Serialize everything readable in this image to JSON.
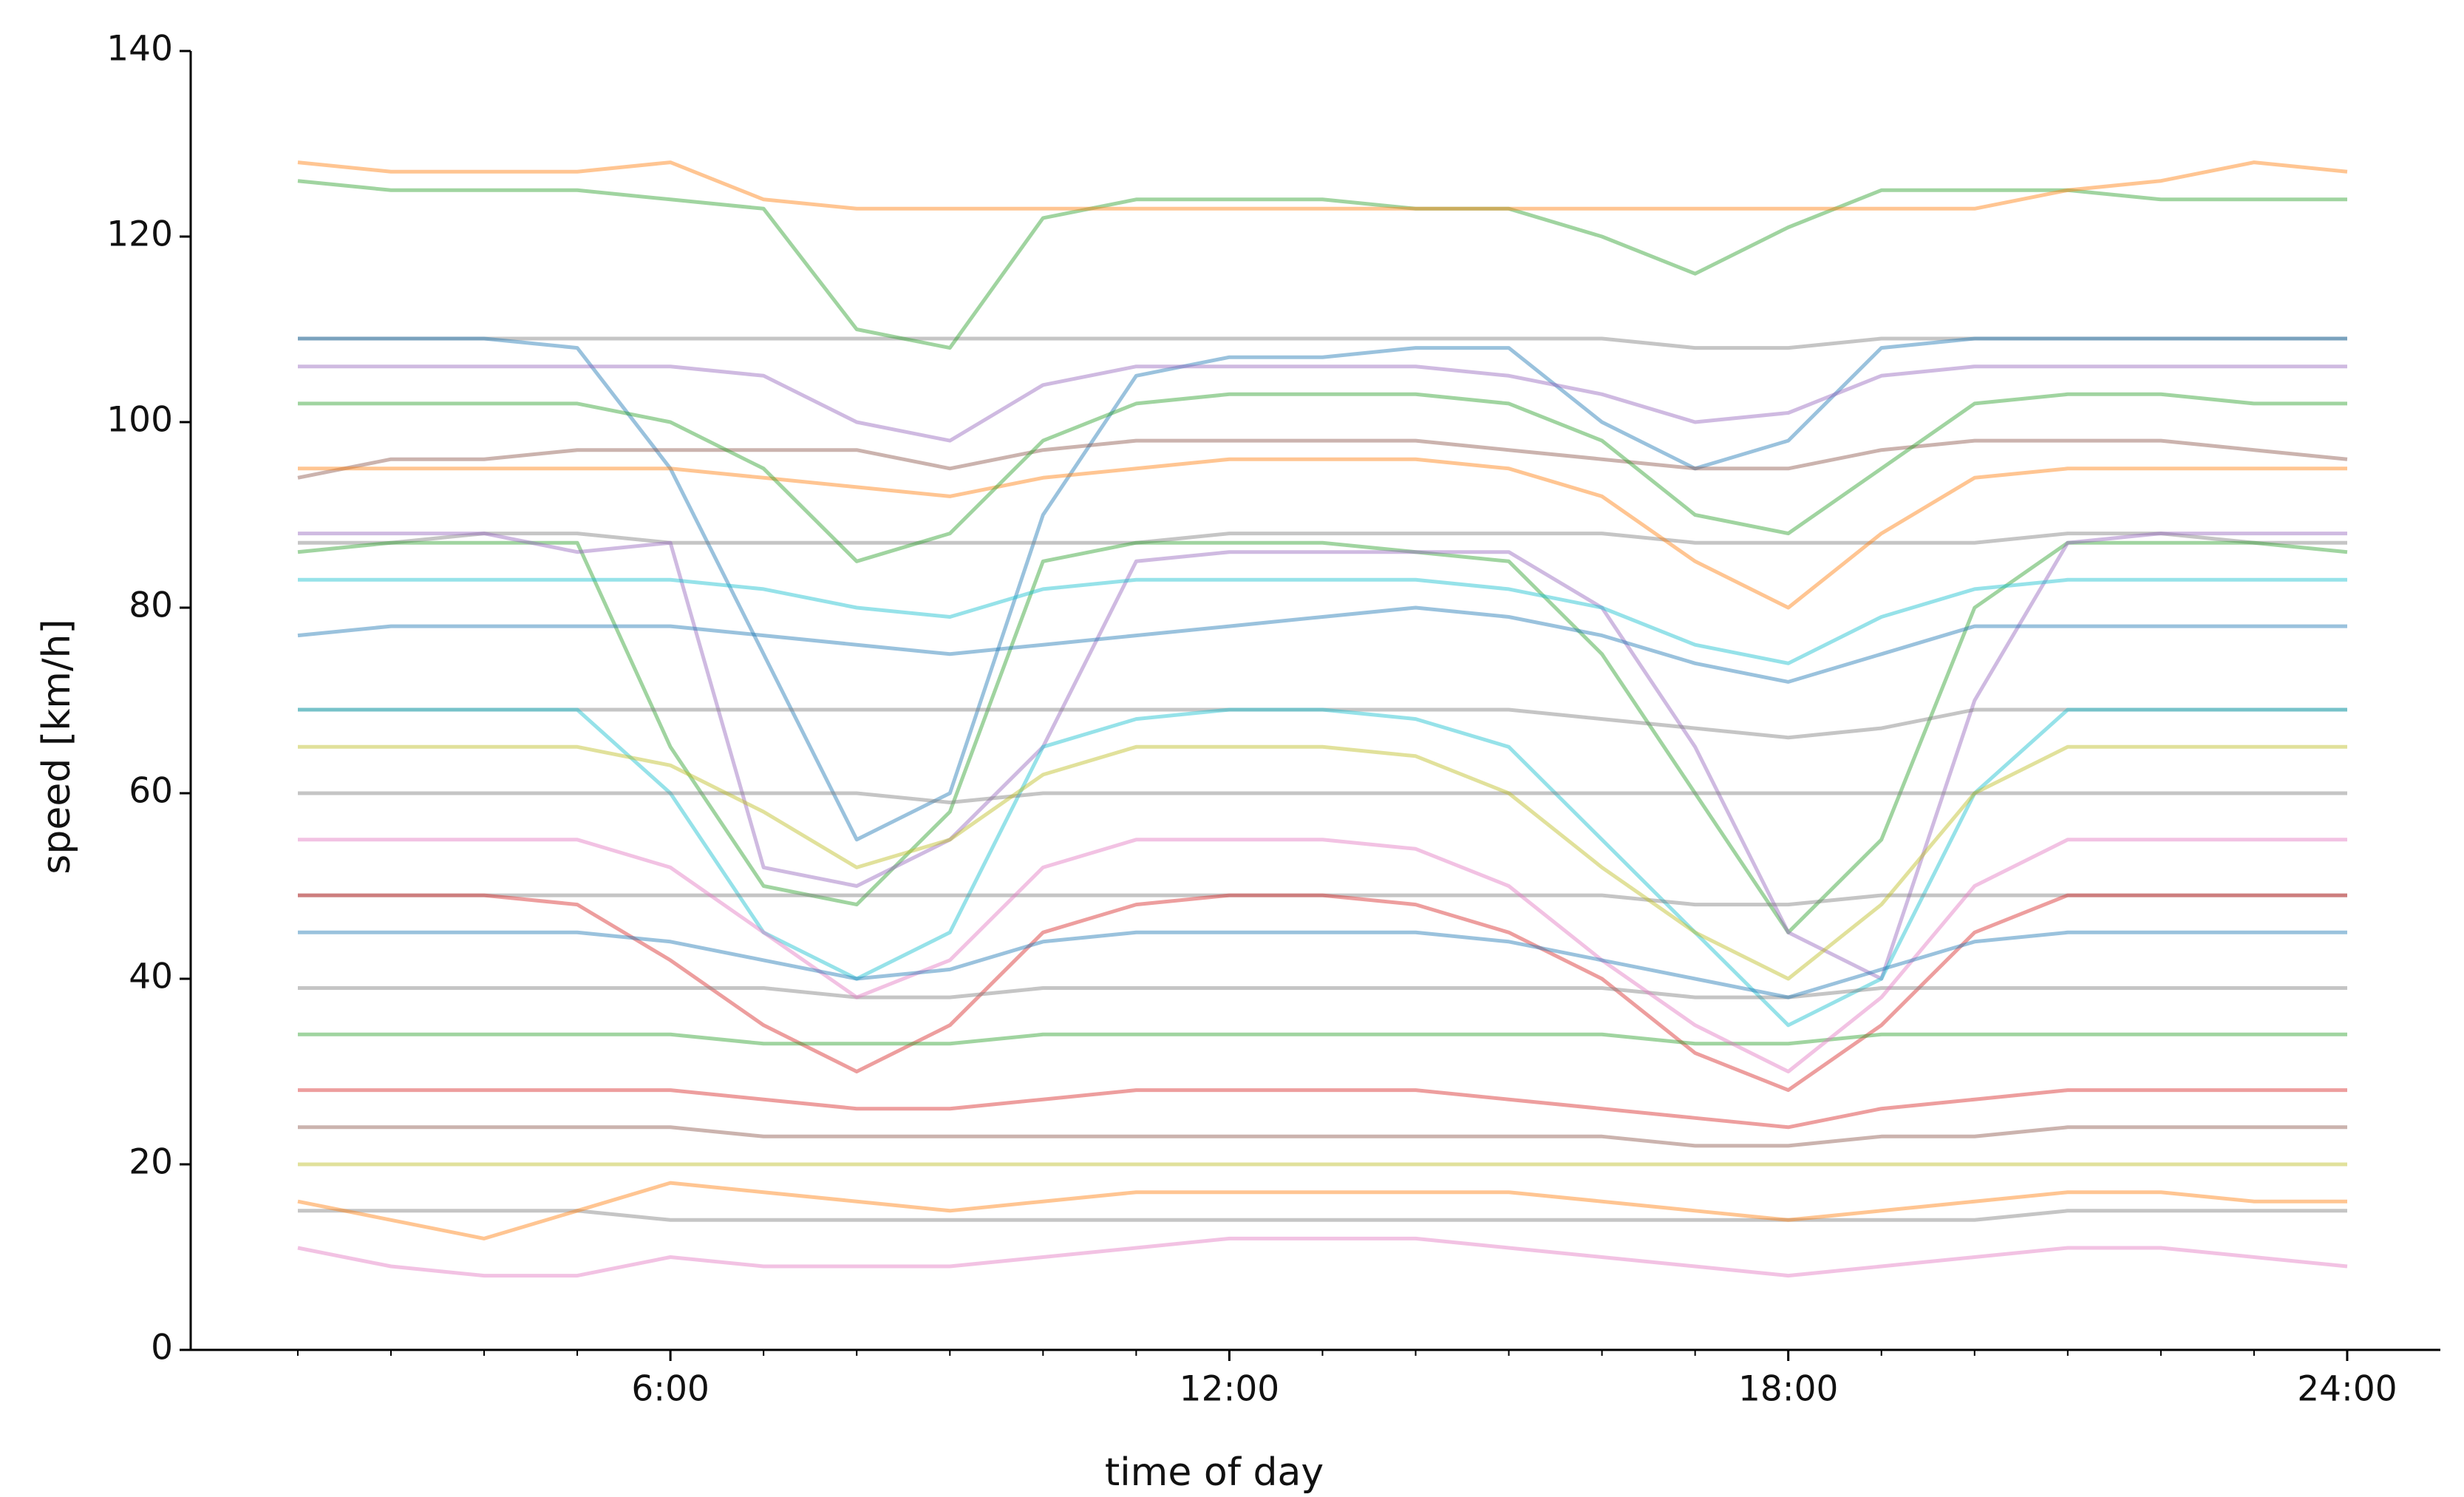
{
  "chart_data": {
    "type": "line",
    "xlabel": "time of day",
    "ylabel": "speed [km/h]",
    "x": [
      2,
      3,
      4,
      5,
      6,
      7,
      8,
      9,
      10,
      11,
      12,
      13,
      14,
      15,
      16,
      17,
      18,
      19,
      20,
      21,
      22,
      23,
      24
    ],
    "xlim": [
      0.85,
      25
    ],
    "ylim": [
      0,
      140
    ],
    "xticks": [
      {
        "value": 6,
        "label": "6:00"
      },
      {
        "value": 12,
        "label": "12:00"
      },
      {
        "value": 18,
        "label": "18:00"
      },
      {
        "value": 24,
        "label": "24:00"
      }
    ],
    "xminorticks": [
      2,
      3,
      4,
      5,
      7,
      8,
      9,
      10,
      11,
      13,
      14,
      15,
      16,
      17,
      19,
      20,
      21,
      22,
      23
    ],
    "yticks": [
      0,
      20,
      40,
      60,
      80,
      100,
      120,
      140
    ],
    "series": [
      {
        "color": "#7f7f7f",
        "values": [
          109,
          109,
          109,
          109,
          109,
          109,
          109,
          109,
          109,
          109,
          109,
          109,
          109,
          109,
          109,
          108,
          108,
          109,
          109,
          109,
          109,
          109,
          109
        ]
      },
      {
        "color": "#2ca02c",
        "values": [
          126,
          125,
          125,
          125,
          124,
          123,
          110,
          108,
          122,
          124,
          124,
          124,
          123,
          123,
          120,
          116,
          121,
          125,
          125,
          125,
          124,
          124,
          124
        ]
      },
      {
        "color": "#ff7f0e",
        "values": [
          128,
          127,
          127,
          127,
          128,
          124,
          123,
          123,
          123,
          123,
          123,
          123,
          123,
          123,
          123,
          123,
          123,
          123,
          123,
          125,
          126,
          128,
          127
        ]
      },
      {
        "color": "#1f77b4",
        "values": [
          109,
          109,
          109,
          108,
          95,
          75,
          55,
          60,
          90,
          105,
          107,
          107,
          108,
          108,
          100,
          95,
          98,
          108,
          109,
          109,
          109,
          109,
          109
        ]
      },
      {
        "color": "#8c564b",
        "values": [
          94,
          96,
          96,
          97,
          97,
          97,
          97,
          95,
          97,
          98,
          98,
          98,
          98,
          97,
          96,
          95,
          95,
          97,
          98,
          98,
          98,
          97,
          96
        ]
      },
      {
        "color": "#7f7f7f",
        "values": [
          87,
          87,
          88,
          88,
          87,
          87,
          87,
          87,
          87,
          87,
          88,
          88,
          88,
          88,
          88,
          87,
          87,
          87,
          87,
          88,
          88,
          87,
          87
        ]
      },
      {
        "color": "#2ca02c",
        "values": [
          86,
          87,
          87,
          87,
          65,
          50,
          48,
          58,
          85,
          87,
          87,
          87,
          86,
          85,
          75,
          60,
          45,
          55,
          80,
          87,
          87,
          87,
          86
        ]
      },
      {
        "color": "#9467bd",
        "values": [
          88,
          88,
          88,
          86,
          87,
          52,
          50,
          55,
          65,
          85,
          86,
          86,
          86,
          86,
          80,
          65,
          45,
          40,
          70,
          87,
          88,
          88,
          88
        ]
      },
      {
        "color": "#7f7f7f",
        "values": [
          69,
          69,
          69,
          69,
          69,
          69,
          69,
          69,
          69,
          69,
          69,
          69,
          69,
          69,
          68,
          67,
          66,
          67,
          69,
          69,
          69,
          69,
          69
        ]
      },
      {
        "color": "#17becf",
        "values": [
          69,
          69,
          69,
          69,
          60,
          45,
          40,
          45,
          65,
          68,
          69,
          69,
          68,
          65,
          55,
          45,
          35,
          40,
          60,
          69,
          69,
          69,
          69
        ]
      },
      {
        "color": "#7f7f7f",
        "values": [
          60,
          60,
          60,
          60,
          60,
          60,
          60,
          59,
          60,
          60,
          60,
          60,
          60,
          60,
          60,
          60,
          60,
          60,
          60,
          60,
          60,
          60,
          60
        ]
      },
      {
        "color": "#7f7f7f",
        "values": [
          49,
          49,
          49,
          49,
          49,
          49,
          49,
          49,
          49,
          49,
          49,
          49,
          49,
          49,
          49,
          48,
          48,
          49,
          49,
          49,
          49,
          49,
          49
        ]
      },
      {
        "color": "#d62728",
        "values": [
          49,
          49,
          49,
          48,
          42,
          35,
          30,
          35,
          45,
          48,
          49,
          49,
          48,
          45,
          40,
          32,
          28,
          35,
          45,
          49,
          49,
          49,
          49
        ]
      },
      {
        "color": "#7f7f7f",
        "values": [
          39,
          39,
          39,
          39,
          39,
          39,
          38,
          38,
          39,
          39,
          39,
          39,
          39,
          39,
          39,
          38,
          38,
          39,
          39,
          39,
          39,
          39,
          39
        ]
      },
      {
        "color": "#2ca02c",
        "values": [
          34,
          34,
          34,
          34,
          34,
          33,
          33,
          33,
          34,
          34,
          34,
          34,
          34,
          34,
          34,
          33,
          33,
          34,
          34,
          34,
          34,
          34,
          34
        ]
      },
      {
        "color": "#8c564b",
        "values": [
          24,
          24,
          24,
          24,
          24,
          23,
          23,
          23,
          23,
          23,
          23,
          23,
          23,
          23,
          23,
          22,
          22,
          23,
          23,
          24,
          24,
          24,
          24
        ]
      },
      {
        "color": "#bcbd22",
        "values": [
          20,
          20,
          20,
          20,
          20,
          20,
          20,
          20,
          20,
          20,
          20,
          20,
          20,
          20,
          20,
          20,
          20,
          20,
          20,
          20,
          20,
          20,
          20
        ]
      },
      {
        "color": "#7f7f7f",
        "values": [
          15,
          15,
          15,
          15,
          14,
          14,
          14,
          14,
          14,
          14,
          14,
          14,
          14,
          14,
          14,
          14,
          14,
          14,
          14,
          15,
          15,
          15,
          15
        ]
      },
      {
        "color": "#e377c2",
        "values": [
          11,
          9,
          8,
          8,
          10,
          9,
          9,
          9,
          10,
          11,
          12,
          12,
          12,
          11,
          10,
          9,
          8,
          9,
          10,
          11,
          11,
          10,
          9
        ]
      },
      {
        "color": "#1f77b4",
        "values": [
          77,
          78,
          78,
          78,
          78,
          77,
          76,
          75,
          76,
          77,
          78,
          79,
          80,
          79,
          77,
          74,
          72,
          75,
          78,
          78,
          78,
          78,
          78
        ]
      },
      {
        "color": "#9467bd",
        "values": [
          106,
          106,
          106,
          106,
          106,
          105,
          100,
          98,
          104,
          106,
          106,
          106,
          106,
          105,
          103,
          100,
          101,
          105,
          106,
          106,
          106,
          106,
          106
        ]
      },
      {
        "color": "#ff7f0e",
        "values": [
          95,
          95,
          95,
          95,
          95,
          94,
          93,
          92,
          94,
          95,
          96,
          96,
          96,
          95,
          92,
          85,
          80,
          88,
          94,
          95,
          95,
          95,
          95
        ]
      },
      {
        "color": "#e377c2",
        "values": [
          55,
          55,
          55,
          55,
          52,
          45,
          38,
          42,
          52,
          55,
          55,
          55,
          54,
          50,
          42,
          35,
          30,
          38,
          50,
          55,
          55,
          55,
          55
        ]
      },
      {
        "color": "#1f77b4",
        "values": [
          45,
          45,
          45,
          45,
          44,
          42,
          40,
          41,
          44,
          45,
          45,
          45,
          45,
          44,
          42,
          40,
          38,
          41,
          44,
          45,
          45,
          45,
          45
        ]
      },
      {
        "color": "#d62728",
        "values": [
          28,
          28,
          28,
          28,
          28,
          27,
          26,
          26,
          27,
          28,
          28,
          28,
          28,
          27,
          26,
          25,
          24,
          26,
          27,
          28,
          28,
          28,
          28
        ]
      },
      {
        "color": "#17becf",
        "values": [
          83,
          83,
          83,
          83,
          83,
          82,
          80,
          79,
          82,
          83,
          83,
          83,
          83,
          82,
          80,
          76,
          74,
          79,
          82,
          83,
          83,
          83,
          83
        ]
      },
      {
        "color": "#bcbd22",
        "values": [
          65,
          65,
          65,
          65,
          63,
          58,
          52,
          55,
          62,
          65,
          65,
          65,
          64,
          60,
          52,
          45,
          40,
          48,
          60,
          65,
          65,
          65,
          65
        ]
      },
      {
        "color": "#2ca02c",
        "values": [
          102,
          102,
          102,
          102,
          100,
          95,
          85,
          88,
          98,
          102,
          103,
          103,
          103,
          102,
          98,
          90,
          88,
          95,
          102,
          103,
          103,
          102,
          102
        ]
      },
      {
        "color": "#ff7f0e",
        "values": [
          16,
          14,
          12,
          15,
          18,
          17,
          16,
          15,
          16,
          17,
          17,
          17,
          17,
          17,
          16,
          15,
          14,
          15,
          16,
          17,
          17,
          16,
          16
        ]
      }
    ]
  }
}
